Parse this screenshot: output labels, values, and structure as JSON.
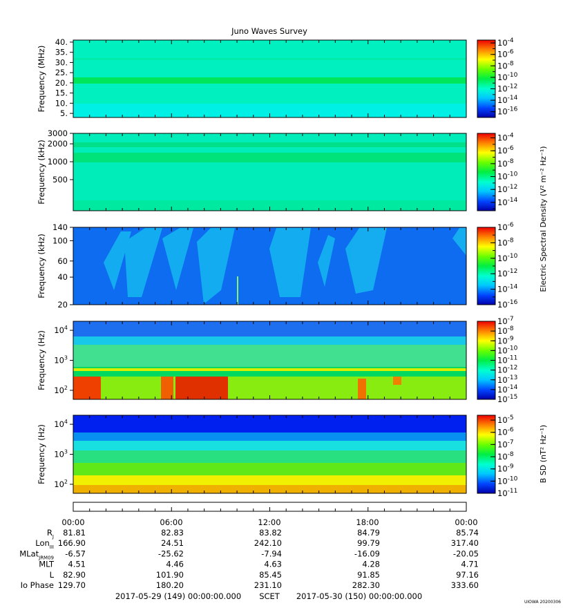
{
  "title": "Juno Waves Survey",
  "stamp": "UIOWA 20200306",
  "colorbars": {
    "electric_label": "Electric Spectral Density (V² m⁻² Hz⁻¹)",
    "magnetic_label": "B SD (nT² Hz⁻¹)"
  },
  "chart_data": [
    {
      "type": "heatmap",
      "name": "panel-1",
      "ylabel": "Frequency (MHz)",
      "y_ticks": [
        "40.",
        "35.",
        "30.",
        "25.",
        "20.",
        "15.",
        "10.",
        "5."
      ],
      "y_tick_values": [
        40,
        35,
        30,
        25,
        20,
        15,
        10,
        5
      ],
      "yscale": "linear",
      "ylim": [
        3,
        41
      ],
      "colorbar_ticks": [
        -4,
        -6,
        -8,
        -10,
        -12,
        -14,
        -16
      ],
      "colorbar_range": [
        -17,
        -3.5
      ]
    },
    {
      "type": "heatmap",
      "name": "panel-2",
      "ylabel": "Frequency (kHz)",
      "y_ticks": [
        "3000",
        "2000",
        "1000",
        "500"
      ],
      "y_tick_values": [
        3000,
        2000,
        1000,
        500
      ],
      "yscale": "log",
      "ylim": [
        150,
        3000
      ],
      "colorbar_ticks": [
        -4,
        -6,
        -8,
        -10,
        -12,
        -14
      ],
      "colorbar_range": [
        -15.3,
        -3.3
      ]
    },
    {
      "type": "heatmap",
      "name": "panel-3",
      "ylabel": "Frequency (kHz)",
      "y_ticks": [
        "140",
        "100",
        "60",
        "40",
        "20"
      ],
      "y_tick_values": [
        140,
        100,
        60,
        40,
        20
      ],
      "yscale": "log",
      "ylim": [
        20,
        140
      ],
      "colorbar_ticks": [
        -6,
        -8,
        -10,
        -12,
        -14,
        -16
      ],
      "colorbar_range": [
        -16,
        -6
      ]
    },
    {
      "type": "heatmap",
      "name": "panel-4",
      "ylabel": "Frequency (Hz)",
      "y_ticks": [
        "10^4",
        "10^3",
        "10^2"
      ],
      "y_tick_values": [
        10000,
        1000,
        100
      ],
      "yscale": "log",
      "ylim": [
        50,
        20000
      ],
      "colorbar_ticks": [
        -7,
        -8,
        -9,
        -10,
        -11,
        -12,
        -13,
        -14,
        -15
      ],
      "colorbar_range": [
        -15,
        -7
      ]
    },
    {
      "type": "heatmap",
      "name": "panel-5",
      "ylabel": "Frequency (Hz)",
      "y_ticks": [
        "10^4",
        "10^3",
        "10^2"
      ],
      "y_tick_values": [
        10000,
        1000,
        100
      ],
      "yscale": "log",
      "ylim": [
        50,
        20000
      ],
      "colorbar_ticks": [
        -5,
        -6,
        -7,
        -8,
        -9,
        -10,
        -11
      ],
      "colorbar_range": [
        -11,
        -4.6
      ]
    }
  ],
  "ephemeris": {
    "times": [
      "00:00",
      "06:00",
      "12:00",
      "18:00",
      "00:00"
    ],
    "rows": [
      {
        "label": "R",
        "sub": "J",
        "values": [
          "81.81",
          "82.83",
          "83.82",
          "84.79",
          "85.74"
        ]
      },
      {
        "label": "Lon",
        "sub": "III",
        "values": [
          "166.90",
          "24.51",
          "242.10",
          "99.79",
          "317.40"
        ]
      },
      {
        "label": "MLat",
        "sub": "JRM09",
        "values": [
          "-6.57",
          "-25.62",
          "-7.94",
          "-16.09",
          "-20.05"
        ]
      },
      {
        "label": "MLT",
        "sub": "",
        "values": [
          "4.51",
          "4.46",
          "4.63",
          "4.28",
          "4.71"
        ]
      },
      {
        "label": "L",
        "sub": "",
        "values": [
          "82.90",
          "101.90",
          "85.45",
          "91.85",
          "97.16"
        ]
      },
      {
        "label": "Io Phase",
        "sub": "",
        "values": [
          "129.70",
          "180.20",
          "231.10",
          "282.30",
          "333.60"
        ]
      }
    ],
    "range_start": "2017-05-29 (149) 00:00:00.000",
    "range_mid": "SCET",
    "range_end": "2017-05-30 (150) 00:00:00.000"
  }
}
